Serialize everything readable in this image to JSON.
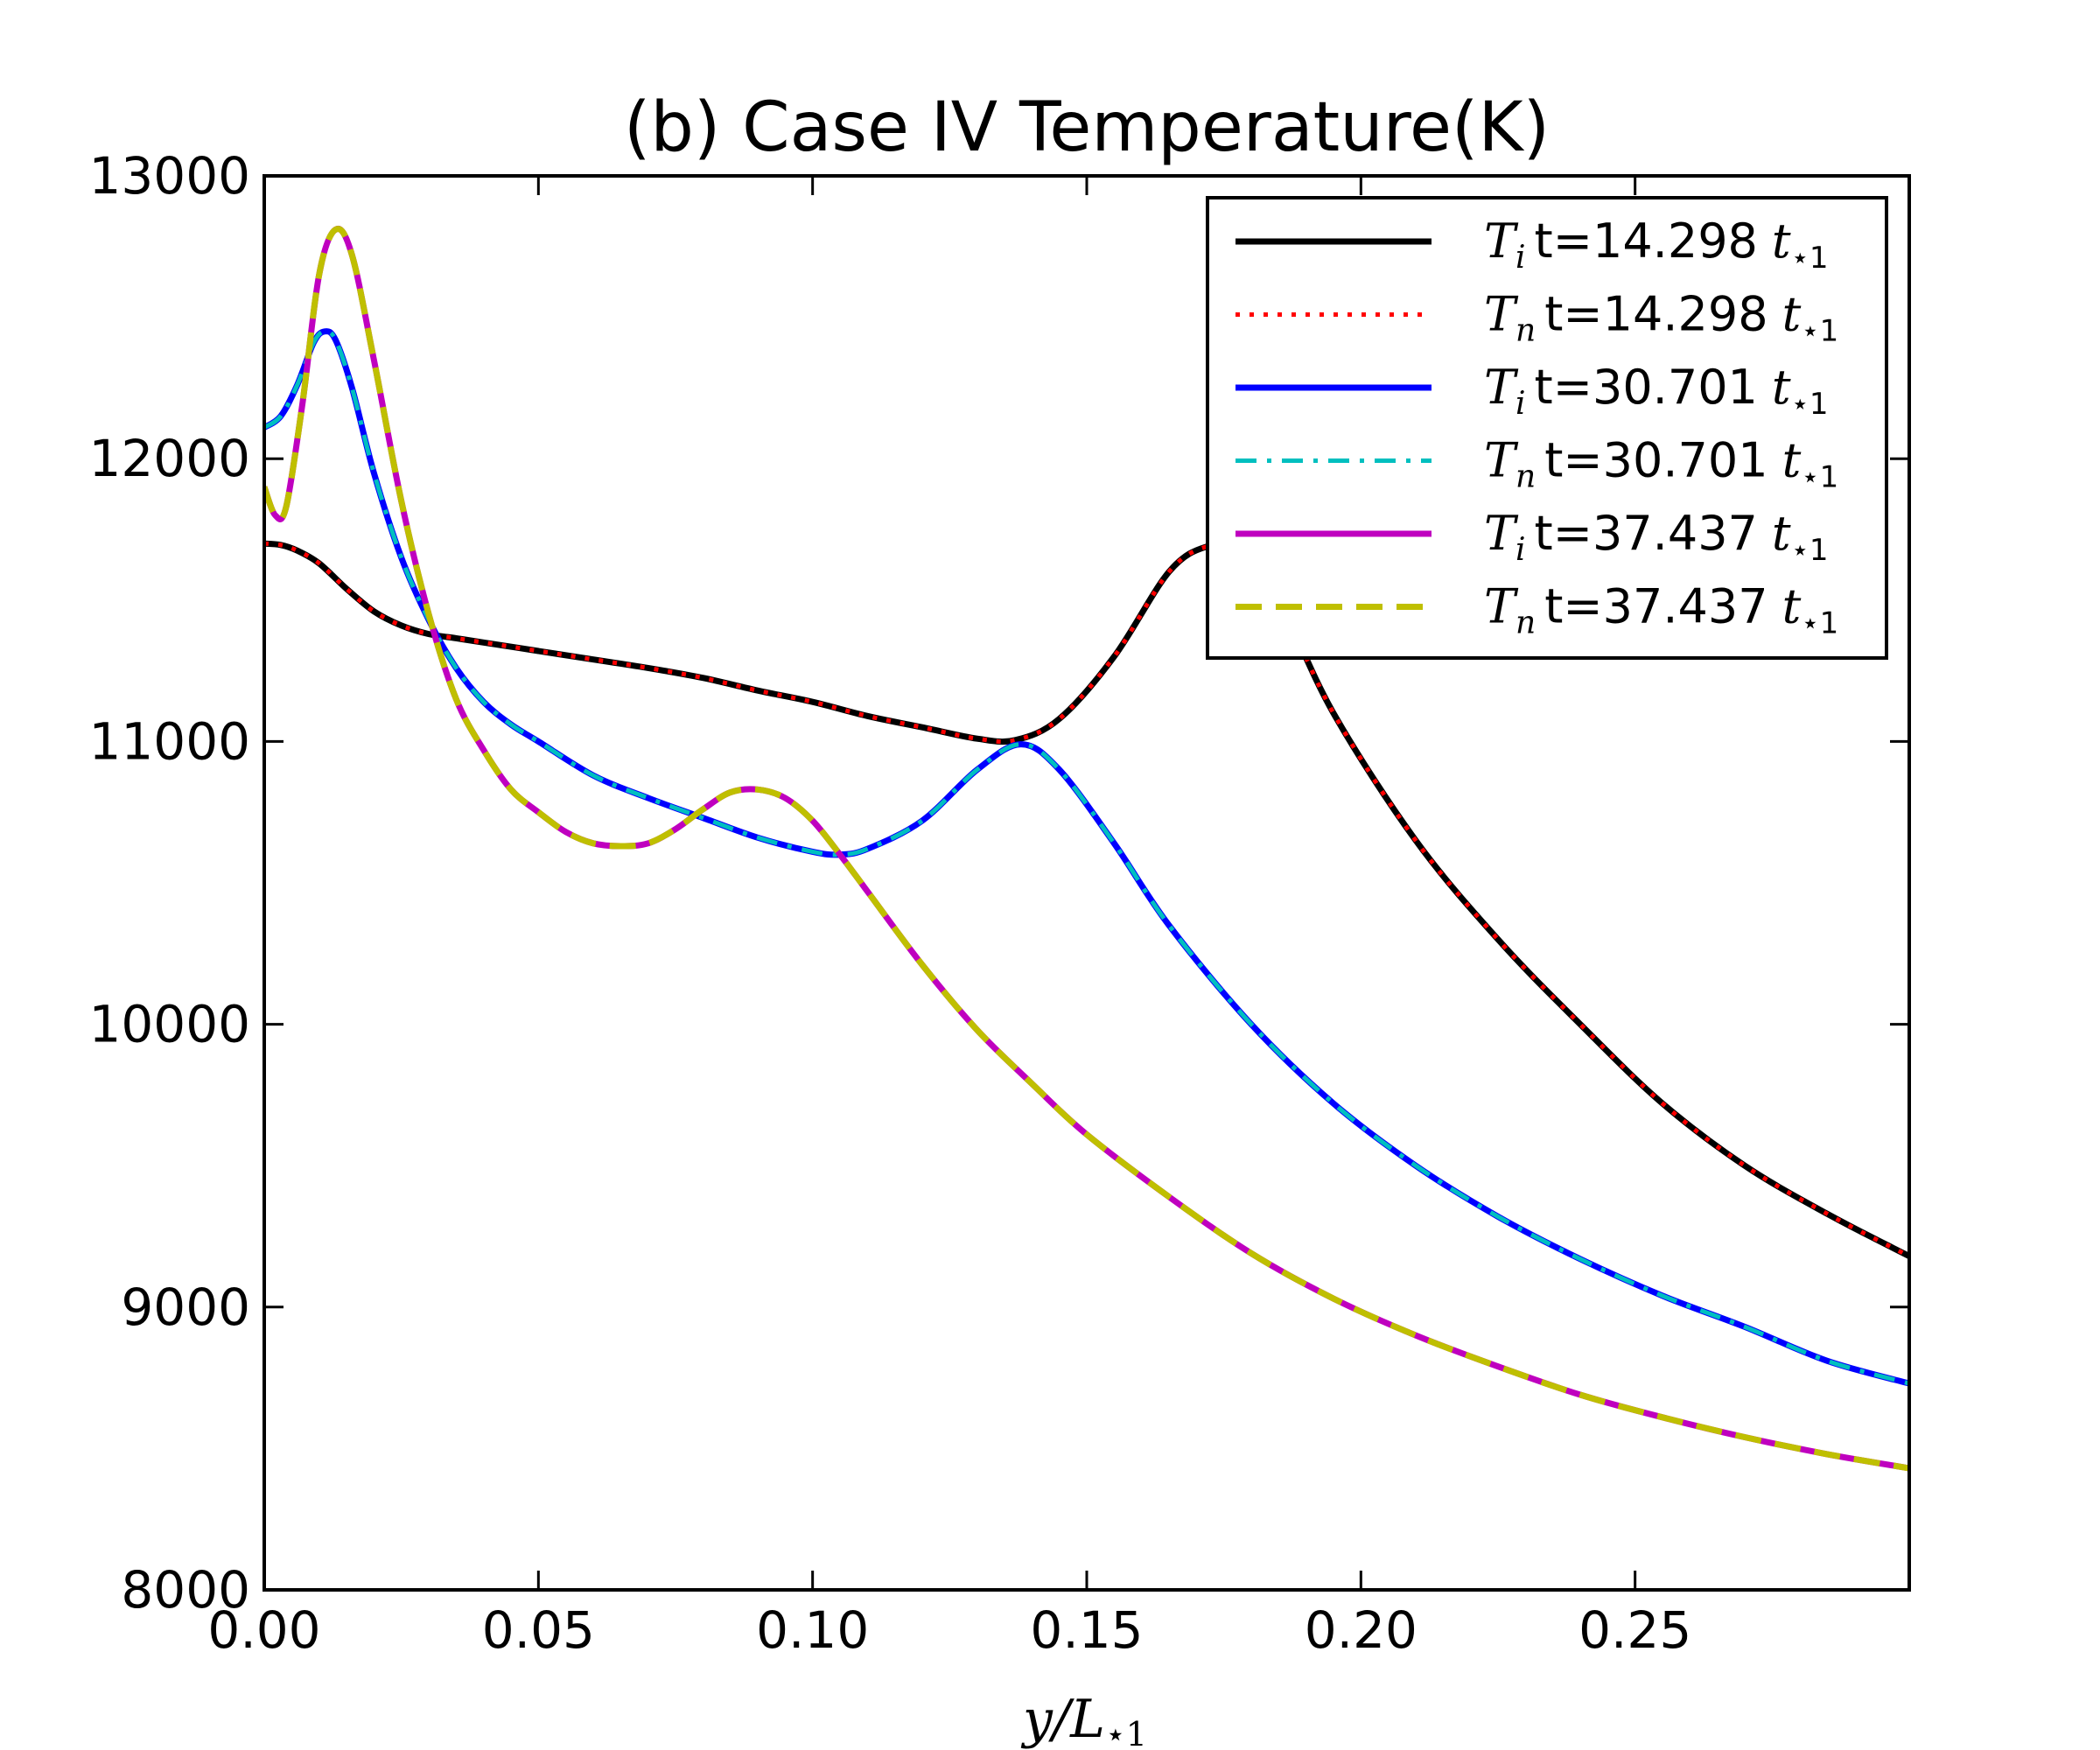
{
  "chart_data": {
    "type": "line",
    "title": "(b) Case IV Temperature(K)",
    "xlabel": {
      "main": "y/L",
      "sub": "⋆1"
    },
    "ylabel": "",
    "xlim": [
      0.0,
      0.3
    ],
    "ylim": [
      8000,
      13000
    ],
    "xticks": [
      0.0,
      0.05,
      0.1,
      0.15,
      0.2,
      0.25
    ],
    "xtick_labels": [
      "0.00",
      "0.05",
      "0.10",
      "0.15",
      "0.20",
      "0.25"
    ],
    "yticks": [
      8000,
      9000,
      10000,
      11000,
      12000,
      13000
    ],
    "ytick_labels": [
      "8000",
      "9000",
      "10000",
      "11000",
      "12000",
      "13000"
    ],
    "grid": false,
    "legend_position": "top-right",
    "series": [
      {
        "sym": "T",
        "sub": "i",
        "label": "t=14.298",
        "tsym": "t",
        "tsub": "⋆1",
        "color": "#000000",
        "style": "solid",
        "width": 7,
        "x": [
          0,
          0.003,
          0.006,
          0.01,
          0.015,
          0.02,
          0.025,
          0.03,
          0.035,
          0.04,
          0.05,
          0.06,
          0.07,
          0.08,
          0.09,
          0.1,
          0.11,
          0.12,
          0.13,
          0.137,
          0.145,
          0.155,
          0.165,
          0.172,
          0.178,
          0.185,
          0.195,
          0.21,
          0.225,
          0.24,
          0.255,
          0.27,
          0.285,
          0.3
        ],
        "y": [
          11700,
          11695,
          11675,
          11630,
          11540,
          11460,
          11410,
          11380,
          11365,
          11350,
          11320,
          11290,
          11260,
          11225,
          11180,
          11140,
          11090,
          11050,
          11010,
          11005,
          11080,
          11300,
          11600,
          11690,
          11680,
          11500,
          11100,
          10650,
          10300,
          10000,
          9720,
          9500,
          9330,
          9180
        ]
      },
      {
        "sym": "T",
        "sub": "n",
        "label": "t=14.298",
        "tsym": "t",
        "tsub": "⋆1",
        "color": "#ff0000",
        "style": "dotted",
        "width": 5,
        "x": [
          0,
          0.003,
          0.006,
          0.01,
          0.015,
          0.02,
          0.025,
          0.03,
          0.035,
          0.04,
          0.05,
          0.06,
          0.07,
          0.08,
          0.09,
          0.1,
          0.11,
          0.12,
          0.13,
          0.137,
          0.145,
          0.155,
          0.165,
          0.172,
          0.178,
          0.185,
          0.195,
          0.21,
          0.225,
          0.24,
          0.255,
          0.27,
          0.285,
          0.3
        ],
        "y": [
          11700,
          11695,
          11675,
          11630,
          11540,
          11460,
          11410,
          11380,
          11365,
          11350,
          11320,
          11290,
          11260,
          11225,
          11180,
          11140,
          11090,
          11050,
          11010,
          11005,
          11080,
          11300,
          11600,
          11690,
          11680,
          11500,
          11100,
          10650,
          10300,
          10000,
          9720,
          9500,
          9330,
          9180
        ]
      },
      {
        "sym": "T",
        "sub": "i",
        "label": "t=30.701",
        "tsym": "t",
        "tsub": "⋆1",
        "color": "#0000ff",
        "style": "solid",
        "width": 7,
        "x": [
          0,
          0.003,
          0.006,
          0.009,
          0.011,
          0.013,
          0.016,
          0.02,
          0.025,
          0.03,
          0.035,
          0.04,
          0.045,
          0.05,
          0.06,
          0.07,
          0.08,
          0.09,
          0.1,
          0.105,
          0.11,
          0.12,
          0.13,
          0.138,
          0.145,
          0.155,
          0.165,
          0.18,
          0.195,
          0.21,
          0.225,
          0.24,
          0.255,
          0.27,
          0.285,
          0.3
        ],
        "y": [
          12110,
          12150,
          12260,
          12410,
          12450,
          12420,
          12250,
          11950,
          11650,
          11430,
          11260,
          11140,
          11060,
          11000,
          10880,
          10800,
          10730,
          10660,
          10610,
          10600,
          10620,
          10720,
          10900,
          10990,
          10900,
          10640,
          10350,
          10000,
          9720,
          9500,
          9320,
          9170,
          9040,
          8930,
          8810,
          8730
        ]
      },
      {
        "sym": "T",
        "sub": "n",
        "label": "t=30.701",
        "tsym": "t",
        "tsub": "⋆1",
        "color": "#00bfbf",
        "style": "dashdot",
        "width": 5,
        "x": [
          0,
          0.003,
          0.006,
          0.009,
          0.011,
          0.013,
          0.016,
          0.02,
          0.025,
          0.03,
          0.035,
          0.04,
          0.045,
          0.05,
          0.06,
          0.07,
          0.08,
          0.09,
          0.1,
          0.105,
          0.11,
          0.12,
          0.13,
          0.138,
          0.145,
          0.155,
          0.165,
          0.18,
          0.195,
          0.21,
          0.225,
          0.24,
          0.255,
          0.27,
          0.285,
          0.3
        ],
        "y": [
          12110,
          12150,
          12260,
          12410,
          12450,
          12420,
          12250,
          11950,
          11650,
          11430,
          11260,
          11140,
          11060,
          11000,
          10880,
          10800,
          10730,
          10660,
          10610,
          10600,
          10620,
          10720,
          10900,
          10990,
          10900,
          10640,
          10350,
          10000,
          9720,
          9500,
          9320,
          9170,
          9040,
          8930,
          8810,
          8730
        ]
      },
      {
        "sym": "T",
        "sub": "i",
        "label": "t=37.437",
        "tsym": "t",
        "tsub": "⋆1",
        "color": "#bf00bf",
        "style": "solid",
        "width": 7,
        "x": [
          0,
          0.002,
          0.004,
          0.007,
          0.01,
          0.013,
          0.016,
          0.02,
          0.025,
          0.03,
          0.035,
          0.04,
          0.045,
          0.05,
          0.055,
          0.06,
          0.065,
          0.07,
          0.075,
          0.08,
          0.085,
          0.09,
          0.095,
          0.1,
          0.105,
          0.11,
          0.12,
          0.13,
          0.14,
          0.15,
          0.165,
          0.18,
          0.195,
          0.21,
          0.225,
          0.24,
          0.255,
          0.27,
          0.285,
          0.3
        ],
        "y": [
          11900,
          11800,
          11830,
          12200,
          12650,
          12810,
          12720,
          12350,
          11850,
          11450,
          11150,
          10970,
          10830,
          10750,
          10680,
          10640,
          10630,
          10640,
          10690,
          10760,
          10820,
          10830,
          10800,
          10720,
          10600,
          10470,
          10210,
          9980,
          9790,
          9610,
          9390,
          9190,
          9030,
          8900,
          8790,
          8690,
          8610,
          8540,
          8480,
          8430
        ]
      },
      {
        "sym": "T",
        "sub": "n",
        "label": "t=37.437",
        "tsym": "t",
        "tsub": "⋆1",
        "color": "#bfbf00",
        "style": "dashed",
        "width": 7,
        "x": [
          0,
          0.002,
          0.004,
          0.007,
          0.01,
          0.013,
          0.016,
          0.02,
          0.025,
          0.03,
          0.035,
          0.04,
          0.045,
          0.05,
          0.055,
          0.06,
          0.065,
          0.07,
          0.075,
          0.08,
          0.085,
          0.09,
          0.095,
          0.1,
          0.105,
          0.11,
          0.12,
          0.13,
          0.14,
          0.15,
          0.165,
          0.18,
          0.195,
          0.21,
          0.225,
          0.24,
          0.255,
          0.27,
          0.285,
          0.3
        ],
        "y": [
          11900,
          11800,
          11830,
          12200,
          12650,
          12810,
          12720,
          12350,
          11850,
          11450,
          11150,
          10970,
          10830,
          10750,
          10680,
          10640,
          10630,
          10640,
          10690,
          10760,
          10820,
          10830,
          10800,
          10720,
          10600,
          10470,
          10210,
          9980,
          9790,
          9610,
          9390,
          9190,
          9030,
          8900,
          8790,
          8690,
          8610,
          8540,
          8480,
          8430
        ]
      }
    ]
  }
}
